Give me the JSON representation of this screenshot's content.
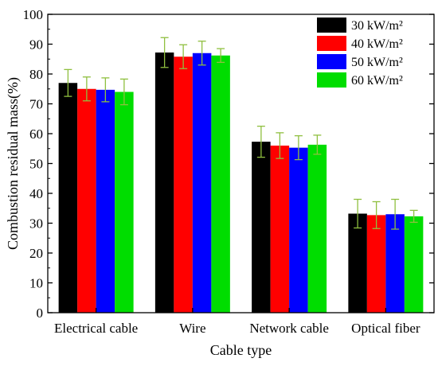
{
  "chart_data": {
    "type": "bar",
    "title": "",
    "xlabel": "Cable type",
    "ylabel": "Combustion residual mass(%)",
    "ylim": [
      0,
      100
    ],
    "yticks": [
      0,
      10,
      20,
      30,
      40,
      50,
      60,
      70,
      80,
      90,
      100
    ],
    "categories": [
      "Electrical cable",
      "Wire",
      "Network cable",
      "Optical fiber"
    ],
    "series": [
      {
        "name": "30 kW/m²",
        "color": "#000000",
        "values": [
          77,
          87.2,
          57.3,
          33.2
        ],
        "errors": [
          4.5,
          5,
          5.2,
          4.8
        ]
      },
      {
        "name": "40 kW/m²",
        "color": "#ff0000",
        "values": [
          75,
          85.8,
          56,
          32.7
        ],
        "errors": [
          4,
          4,
          4.3,
          4.5
        ]
      },
      {
        "name": "50 kW/m²",
        "color": "#0000ff",
        "values": [
          74.7,
          87,
          55.3,
          33
        ],
        "errors": [
          4,
          4,
          4,
          5
        ]
      },
      {
        "name": "60 kW/m²",
        "color": "#00dd00",
        "values": [
          74,
          86.2,
          56.3,
          32.3
        ],
        "errors": [
          4.3,
          2.3,
          3.2,
          2
        ]
      }
    ],
    "legend": "top-right",
    "grid": false,
    "error_bar_color": "#8fbf3f"
  }
}
